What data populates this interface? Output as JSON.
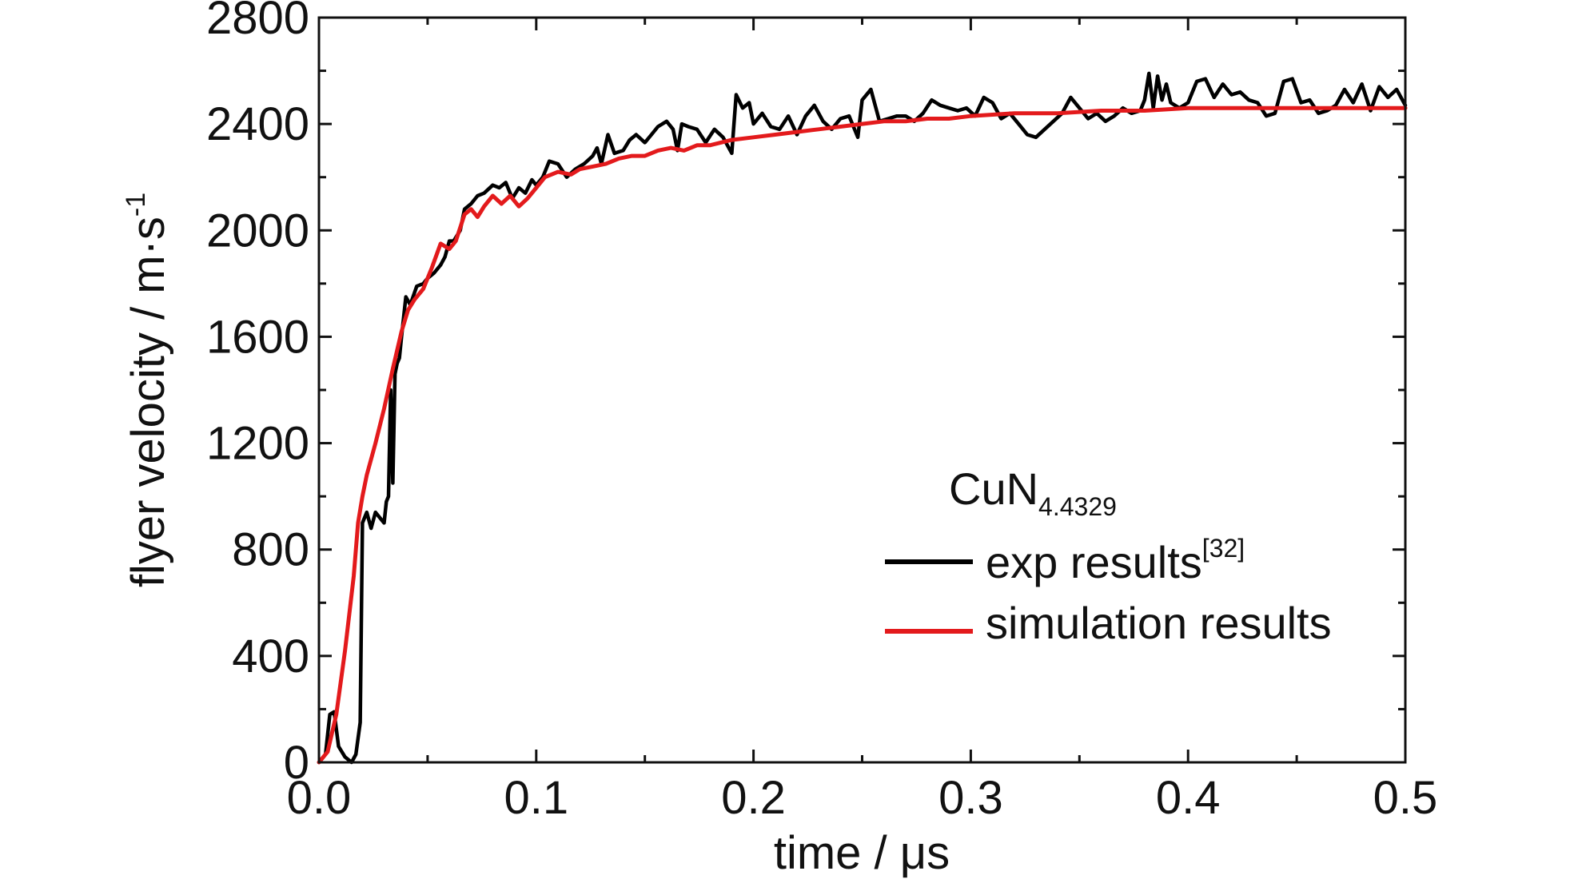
{
  "chart_data": {
    "type": "line",
    "xlabel": "time / μs",
    "ylabel_main": "flyer velocity / m·s",
    "ylabel_sup": "-1",
    "xlim": [
      0.0,
      0.5
    ],
    "ylim": [
      0,
      2800
    ],
    "x_ticks": [
      0.0,
      0.1,
      0.2,
      0.3,
      0.4,
      0.5
    ],
    "x_tick_labels": [
      "0.0",
      "0.1",
      "0.2",
      "0.3",
      "0.4",
      "0.5"
    ],
    "y_ticks": [
      0,
      400,
      800,
      1200,
      1600,
      2000,
      2400,
      2800
    ],
    "y_tick_labels": [
      "0",
      "400",
      "800",
      "1200",
      "1600",
      "2000",
      "2400",
      "2800"
    ],
    "grid": false,
    "legend_position": "right",
    "legend_title_main": "CuN",
    "legend_title_sub": "4.4329",
    "series": [
      {
        "name": "exp results",
        "name_sup": "[32]",
        "color": "#000000",
        "points": [
          [
            0.0,
            0
          ],
          [
            0.003,
            30
          ],
          [
            0.005,
            180
          ],
          [
            0.007,
            190
          ],
          [
            0.009,
            60
          ],
          [
            0.012,
            20
          ],
          [
            0.015,
            0
          ],
          [
            0.017,
            30
          ],
          [
            0.019,
            150
          ],
          [
            0.02,
            900
          ],
          [
            0.022,
            940
          ],
          [
            0.024,
            880
          ],
          [
            0.026,
            940
          ],
          [
            0.028,
            920
          ],
          [
            0.03,
            900
          ],
          [
            0.031,
            980
          ],
          [
            0.032,
            1000
          ],
          [
            0.033,
            1400
          ],
          [
            0.034,
            1050
          ],
          [
            0.035,
            1460
          ],
          [
            0.036,
            1500
          ],
          [
            0.037,
            1520
          ],
          [
            0.038,
            1600
          ],
          [
            0.04,
            1750
          ],
          [
            0.042,
            1720
          ],
          [
            0.045,
            1790
          ],
          [
            0.048,
            1800
          ],
          [
            0.05,
            1820
          ],
          [
            0.053,
            1840
          ],
          [
            0.056,
            1870
          ],
          [
            0.058,
            1900
          ],
          [
            0.06,
            1960
          ],
          [
            0.062,
            1960
          ],
          [
            0.065,
            2000
          ],
          [
            0.067,
            2080
          ],
          [
            0.07,
            2100
          ],
          [
            0.073,
            2130
          ],
          [
            0.076,
            2140
          ],
          [
            0.08,
            2170
          ],
          [
            0.083,
            2160
          ],
          [
            0.086,
            2180
          ],
          [
            0.089,
            2120
          ],
          [
            0.092,
            2160
          ],
          [
            0.095,
            2140
          ],
          [
            0.098,
            2190
          ],
          [
            0.1,
            2170
          ],
          [
            0.103,
            2200
          ],
          [
            0.106,
            2260
          ],
          [
            0.11,
            2250
          ],
          [
            0.114,
            2200
          ],
          [
            0.118,
            2230
          ],
          [
            0.122,
            2250
          ],
          [
            0.126,
            2280
          ],
          [
            0.128,
            2310
          ],
          [
            0.13,
            2250
          ],
          [
            0.133,
            2360
          ],
          [
            0.136,
            2290
          ],
          [
            0.14,
            2300
          ],
          [
            0.143,
            2340
          ],
          [
            0.146,
            2360
          ],
          [
            0.15,
            2330
          ],
          [
            0.153,
            2360
          ],
          [
            0.156,
            2390
          ],
          [
            0.16,
            2410
          ],
          [
            0.163,
            2380
          ],
          [
            0.165,
            2300
          ],
          [
            0.167,
            2400
          ],
          [
            0.17,
            2390
          ],
          [
            0.174,
            2380
          ],
          [
            0.178,
            2330
          ],
          [
            0.182,
            2380
          ],
          [
            0.186,
            2350
          ],
          [
            0.19,
            2290
          ],
          [
            0.192,
            2510
          ],
          [
            0.195,
            2460
          ],
          [
            0.198,
            2480
          ],
          [
            0.2,
            2400
          ],
          [
            0.204,
            2440
          ],
          [
            0.208,
            2390
          ],
          [
            0.212,
            2380
          ],
          [
            0.216,
            2430
          ],
          [
            0.22,
            2360
          ],
          [
            0.224,
            2430
          ],
          [
            0.228,
            2470
          ],
          [
            0.232,
            2410
          ],
          [
            0.236,
            2380
          ],
          [
            0.24,
            2420
          ],
          [
            0.244,
            2430
          ],
          [
            0.248,
            2350
          ],
          [
            0.25,
            2490
          ],
          [
            0.254,
            2530
          ],
          [
            0.258,
            2410
          ],
          [
            0.262,
            2420
          ],
          [
            0.266,
            2430
          ],
          [
            0.27,
            2430
          ],
          [
            0.274,
            2410
          ],
          [
            0.278,
            2440
          ],
          [
            0.282,
            2490
          ],
          [
            0.286,
            2470
          ],
          [
            0.29,
            2460
          ],
          [
            0.294,
            2450
          ],
          [
            0.298,
            2460
          ],
          [
            0.302,
            2430
          ],
          [
            0.306,
            2500
          ],
          [
            0.31,
            2480
          ],
          [
            0.314,
            2420
          ],
          [
            0.318,
            2440
          ],
          [
            0.322,
            2400
          ],
          [
            0.326,
            2360
          ],
          [
            0.33,
            2350
          ],
          [
            0.334,
            2380
          ],
          [
            0.338,
            2410
          ],
          [
            0.342,
            2440
          ],
          [
            0.346,
            2500
          ],
          [
            0.35,
            2460
          ],
          [
            0.354,
            2420
          ],
          [
            0.358,
            2440
          ],
          [
            0.362,
            2410
          ],
          [
            0.366,
            2430
          ],
          [
            0.37,
            2460
          ],
          [
            0.374,
            2440
          ],
          [
            0.378,
            2450
          ],
          [
            0.38,
            2490
          ],
          [
            0.382,
            2590
          ],
          [
            0.384,
            2460
          ],
          [
            0.386,
            2580
          ],
          [
            0.388,
            2490
          ],
          [
            0.39,
            2550
          ],
          [
            0.392,
            2480
          ],
          [
            0.396,
            2460
          ],
          [
            0.4,
            2480
          ],
          [
            0.404,
            2560
          ],
          [
            0.408,
            2570
          ],
          [
            0.412,
            2500
          ],
          [
            0.416,
            2550
          ],
          [
            0.42,
            2510
          ],
          [
            0.424,
            2520
          ],
          [
            0.428,
            2490
          ],
          [
            0.432,
            2480
          ],
          [
            0.436,
            2430
          ],
          [
            0.44,
            2440
          ],
          [
            0.444,
            2560
          ],
          [
            0.448,
            2570
          ],
          [
            0.452,
            2480
          ],
          [
            0.456,
            2490
          ],
          [
            0.46,
            2440
          ],
          [
            0.464,
            2450
          ],
          [
            0.468,
            2470
          ],
          [
            0.472,
            2530
          ],
          [
            0.476,
            2480
          ],
          [
            0.48,
            2550
          ],
          [
            0.484,
            2450
          ],
          [
            0.488,
            2540
          ],
          [
            0.492,
            2500
          ],
          [
            0.496,
            2530
          ],
          [
            0.5,
            2470
          ]
        ]
      },
      {
        "name": "simulation results",
        "color": "#e31a1c",
        "points": [
          [
            0.0,
            0
          ],
          [
            0.004,
            40
          ],
          [
            0.008,
            180
          ],
          [
            0.012,
            420
          ],
          [
            0.016,
            700
          ],
          [
            0.018,
            900
          ],
          [
            0.02,
            1000
          ],
          [
            0.022,
            1080
          ],
          [
            0.026,
            1200
          ],
          [
            0.03,
            1330
          ],
          [
            0.034,
            1480
          ],
          [
            0.038,
            1620
          ],
          [
            0.041,
            1700
          ],
          [
            0.044,
            1740
          ],
          [
            0.048,
            1780
          ],
          [
            0.052,
            1860
          ],
          [
            0.056,
            1950
          ],
          [
            0.06,
            1930
          ],
          [
            0.063,
            1960
          ],
          [
            0.067,
            2060
          ],
          [
            0.07,
            2080
          ],
          [
            0.073,
            2050
          ],
          [
            0.076,
            2090
          ],
          [
            0.08,
            2130
          ],
          [
            0.084,
            2100
          ],
          [
            0.088,
            2130
          ],
          [
            0.092,
            2090
          ],
          [
            0.096,
            2120
          ],
          [
            0.1,
            2160
          ],
          [
            0.104,
            2200
          ],
          [
            0.11,
            2220
          ],
          [
            0.116,
            2210
          ],
          [
            0.12,
            2230
          ],
          [
            0.126,
            2240
          ],
          [
            0.132,
            2250
          ],
          [
            0.138,
            2270
          ],
          [
            0.144,
            2280
          ],
          [
            0.15,
            2280
          ],
          [
            0.156,
            2300
          ],
          [
            0.162,
            2310
          ],
          [
            0.168,
            2300
          ],
          [
            0.174,
            2320
          ],
          [
            0.18,
            2320
          ],
          [
            0.19,
            2340
          ],
          [
            0.2,
            2350
          ],
          [
            0.21,
            2360
          ],
          [
            0.22,
            2370
          ],
          [
            0.23,
            2380
          ],
          [
            0.24,
            2390
          ],
          [
            0.25,
            2400
          ],
          [
            0.26,
            2410
          ],
          [
            0.27,
            2410
          ],
          [
            0.28,
            2420
          ],
          [
            0.29,
            2420
          ],
          [
            0.3,
            2430
          ],
          [
            0.32,
            2440
          ],
          [
            0.34,
            2440
          ],
          [
            0.36,
            2450
          ],
          [
            0.38,
            2450
          ],
          [
            0.4,
            2460
          ],
          [
            0.42,
            2460
          ],
          [
            0.44,
            2460
          ],
          [
            0.46,
            2460
          ],
          [
            0.48,
            2460
          ],
          [
            0.5,
            2460
          ]
        ]
      }
    ]
  }
}
